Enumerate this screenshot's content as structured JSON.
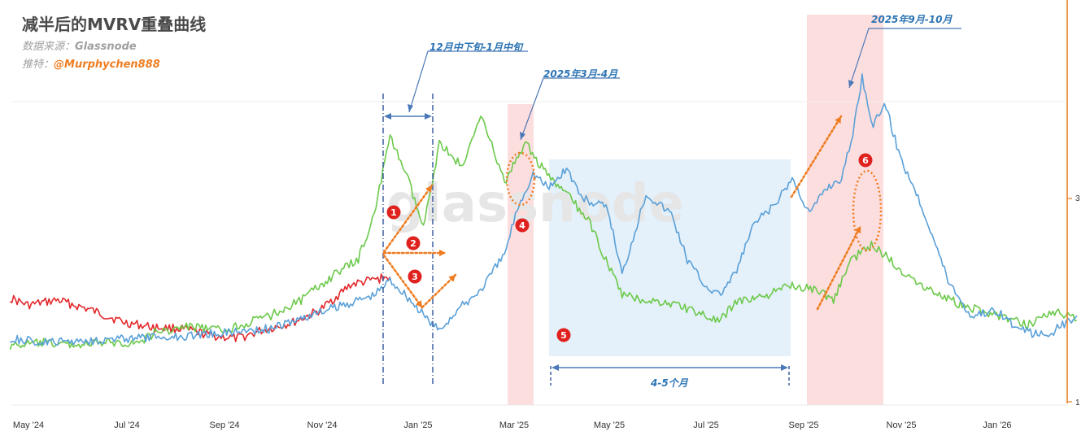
{
  "header": {
    "title": "减半后的MVRV重叠曲线",
    "source_label": "数据来源：",
    "source_value": "Glassnode",
    "push_label": "推特：",
    "push_value": "@Murphychen888"
  },
  "watermark": "glassnode",
  "annotations": {
    "a1": "12月中下旬-1月中旬",
    "a2": "2025年3月-4月",
    "a3": "2025年9月-10月",
    "a4": "4-5个月",
    "badges": [
      "1",
      "2",
      "3",
      "4",
      "5",
      "6"
    ]
  },
  "colors": {
    "red": "#e3282b",
    "green": "#6cc94a",
    "blue": "#5aa0d8",
    "orange": "#ee7d22",
    "navy": "#3d5f9e",
    "shade_red": "#fddede",
    "shade_blue": "#e4f0fa",
    "badge": "#e0221f"
  },
  "chart_data": {
    "type": "line",
    "x": [
      "May '24",
      "Jul '24",
      "Sep '24",
      "Nov '24",
      "Jan '25",
      "Mar '25",
      "May '25",
      "Jul '25",
      "Sep '25",
      "Nov '25",
      "Jan '26"
    ],
    "yticks": [
      "3",
      "1"
    ],
    "series": [
      {
        "color": "red",
        "points": [
          [
            "2024-04-20",
            2.02
          ],
          [
            "2024-05-01",
            1.95
          ],
          [
            "2024-05-20",
            2.0
          ],
          [
            "2024-06-10",
            1.9
          ],
          [
            "2024-07-01",
            1.78
          ],
          [
            "2024-07-20",
            1.73
          ],
          [
            "2024-08-05",
            1.72
          ],
          [
            "2024-08-25",
            1.65
          ],
          [
            "2024-09-10",
            1.62
          ],
          [
            "2024-09-25",
            1.7
          ],
          [
            "2024-10-15",
            1.78
          ],
          [
            "2024-11-01",
            1.9
          ],
          [
            "2024-11-20",
            2.15
          ],
          [
            "2024-12-05",
            2.2
          ],
          [
            "2024-12-15",
            2.23
          ]
        ]
      },
      {
        "color": "green",
        "points": [
          [
            "2024-04-20",
            1.55
          ],
          [
            "2024-05-10",
            1.58
          ],
          [
            "2024-06-01",
            1.56
          ],
          [
            "2024-06-20",
            1.58
          ],
          [
            "2024-07-10",
            1.58
          ],
          [
            "2024-07-20",
            1.68
          ],
          [
            "2024-08-10",
            1.74
          ],
          [
            "2024-09-01",
            1.7
          ],
          [
            "2024-10-01",
            1.85
          ],
          [
            "2024-10-20",
            2.0
          ],
          [
            "2024-11-10",
            2.25
          ],
          [
            "2024-11-25",
            2.4
          ],
          [
            "2024-12-05",
            2.85
          ],
          [
            "2024-12-15",
            3.6
          ],
          [
            "2024-12-25",
            3.25
          ],
          [
            "2025-01-05",
            2.7
          ],
          [
            "2025-01-15",
            3.55
          ],
          [
            "2025-01-30",
            3.3
          ],
          [
            "2025-02-10",
            3.85
          ],
          [
            "2025-02-25",
            3.15
          ],
          [
            "2025-03-10",
            3.55
          ],
          [
            "2025-03-25",
            3.2
          ],
          [
            "2025-04-05",
            3.05
          ],
          [
            "2025-04-20",
            2.75
          ],
          [
            "2025-05-01",
            2.35
          ],
          [
            "2025-05-10",
            2.05
          ],
          [
            "2025-05-25",
            2.0
          ],
          [
            "2025-06-15",
            1.95
          ],
          [
            "2025-07-01",
            1.85
          ],
          [
            "2025-07-10",
            1.78
          ],
          [
            "2025-07-20",
            1.98
          ],
          [
            "2025-08-10",
            2.05
          ],
          [
            "2025-08-25",
            2.15
          ],
          [
            "2025-09-10",
            2.1
          ],
          [
            "2025-09-20",
            2.0
          ],
          [
            "2025-10-01",
            2.4
          ],
          [
            "2025-10-15",
            2.55
          ],
          [
            "2025-11-01",
            2.3
          ],
          [
            "2025-11-20",
            2.1
          ],
          [
            "2025-12-10",
            1.95
          ],
          [
            "2026-01-01",
            1.85
          ],
          [
            "2026-01-20",
            1.75
          ],
          [
            "2026-02-05",
            1.9
          ],
          [
            "2026-02-20",
            1.8
          ]
        ]
      },
      {
        "color": "blue",
        "points": [
          [
            "2024-04-20",
            1.62
          ],
          [
            "2024-05-10",
            1.58
          ],
          [
            "2024-06-01",
            1.6
          ],
          [
            "2024-07-01",
            1.62
          ],
          [
            "2024-08-01",
            1.64
          ],
          [
            "2024-09-01",
            1.68
          ],
          [
            "2024-10-01",
            1.72
          ],
          [
            "2024-11-01",
            1.88
          ],
          [
            "2024-12-05",
            2.05
          ],
          [
            "2024-12-15",
            2.2
          ],
          [
            "2024-12-25",
            2.05
          ],
          [
            "2025-01-05",
            1.85
          ],
          [
            "2025-01-15",
            1.7
          ],
          [
            "2025-01-25",
            1.88
          ],
          [
            "2025-02-10",
            2.1
          ],
          [
            "2025-02-25",
            2.45
          ],
          [
            "2025-03-05",
            2.9
          ],
          [
            "2025-03-15",
            3.25
          ],
          [
            "2025-03-25",
            3.1
          ],
          [
            "2025-04-05",
            3.3
          ],
          [
            "2025-04-15",
            3.0
          ],
          [
            "2025-05-01",
            2.9
          ],
          [
            "2025-05-10",
            2.25
          ],
          [
            "2025-05-25",
            3.05
          ],
          [
            "2025-06-10",
            2.85
          ],
          [
            "2025-06-20",
            2.4
          ],
          [
            "2025-07-01",
            2.15
          ],
          [
            "2025-07-10",
            2.05
          ],
          [
            "2025-07-20",
            2.25
          ],
          [
            "2025-08-01",
            2.75
          ],
          [
            "2025-08-15",
            2.95
          ],
          [
            "2025-08-25",
            3.2
          ],
          [
            "2025-09-05",
            2.85
          ],
          [
            "2025-09-15",
            3.1
          ],
          [
            "2025-09-25",
            3.2
          ],
          [
            "2025-10-01",
            3.55
          ],
          [
            "2025-10-08",
            4.2
          ],
          [
            "2025-10-15",
            3.7
          ],
          [
            "2025-10-22",
            3.95
          ],
          [
            "2025-11-01",
            3.4
          ],
          [
            "2025-11-10",
            3.1
          ],
          [
            "2025-11-20",
            2.7
          ],
          [
            "2025-12-01",
            2.2
          ],
          [
            "2025-12-15",
            1.85
          ],
          [
            "2026-01-01",
            1.9
          ],
          [
            "2026-01-15",
            1.7
          ],
          [
            "2026-02-01",
            1.65
          ],
          [
            "2026-02-20",
            1.85
          ]
        ]
      }
    ]
  }
}
